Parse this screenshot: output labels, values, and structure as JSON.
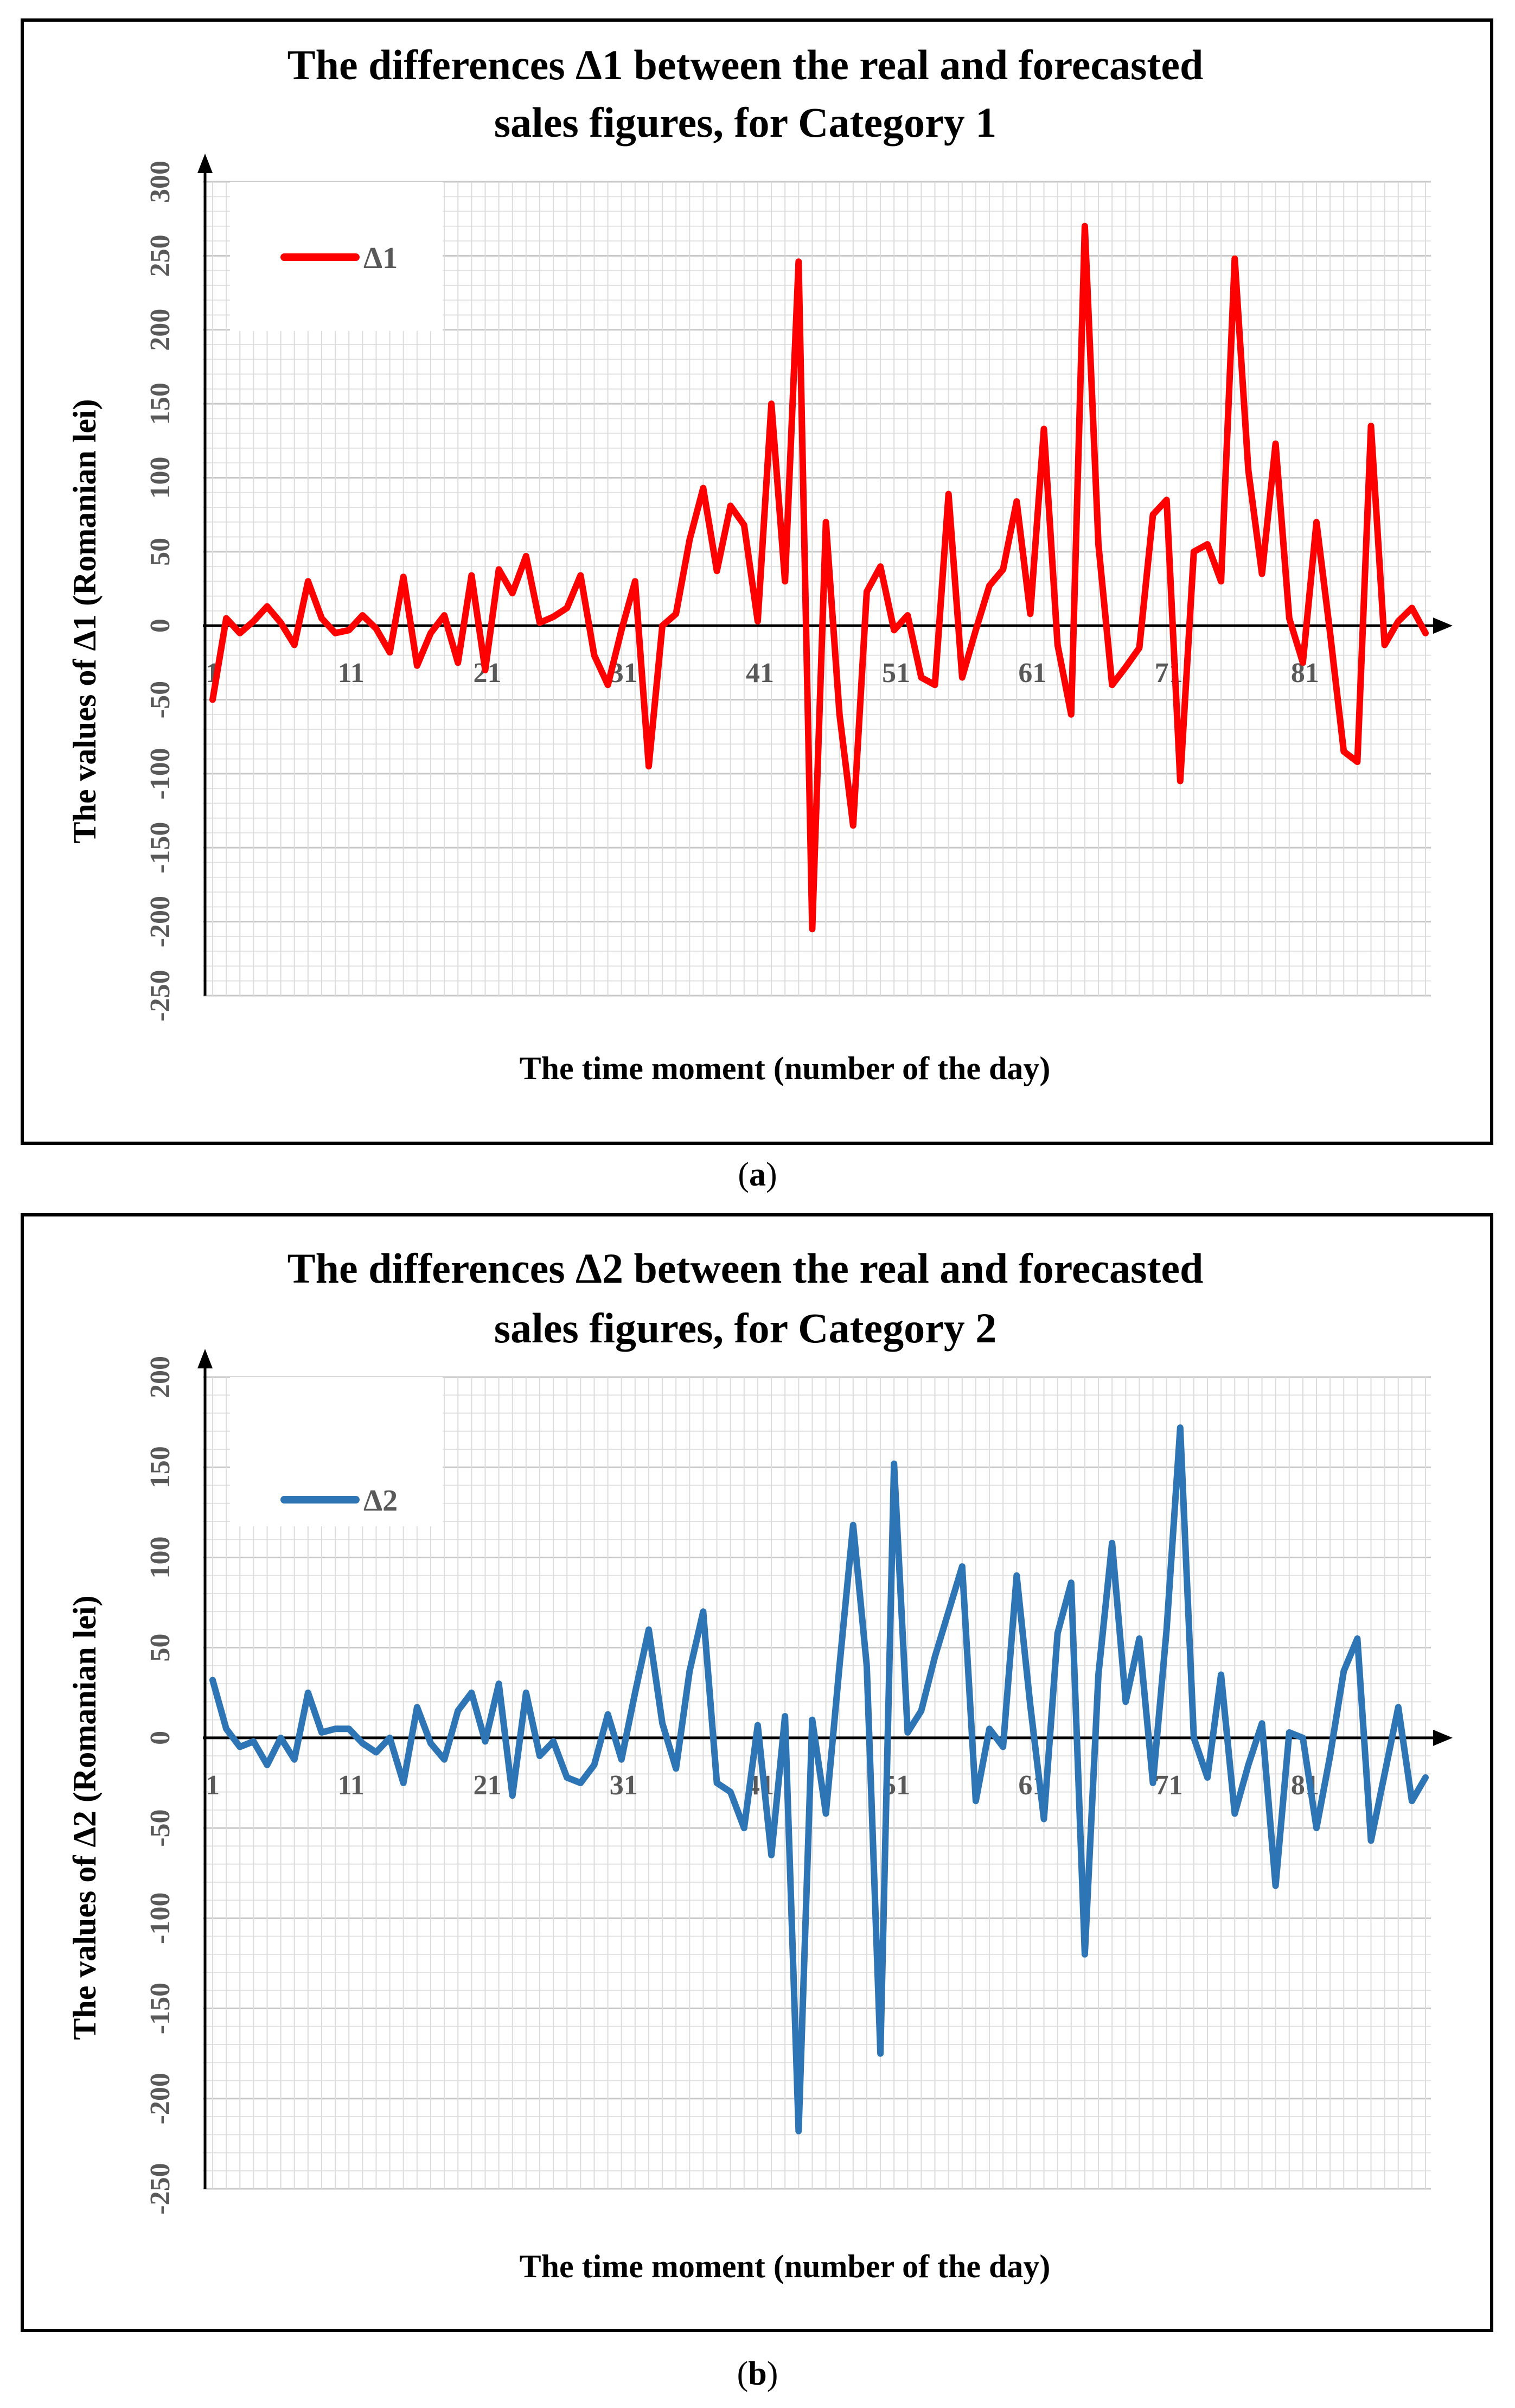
{
  "captions": {
    "a_prefix": "(",
    "a_letter": "a",
    "a_suffix": ")",
    "b_prefix": "(",
    "b_letter": "b",
    "b_suffix": ")"
  },
  "chart_data": [
    {
      "type": "line",
      "title_line1": "The differences Δ1 between the real and forecasted",
      "title_line2": "sales figures, for Category 1",
      "xlabel": "The time moment (number of the day)",
      "ylabel": "The values of Δ1 (Romanian lei)",
      "ylim": [
        -250,
        300
      ],
      "yticks": [
        -250,
        -200,
        -150,
        -100,
        -50,
        0,
        50,
        100,
        150,
        200,
        250,
        300
      ],
      "xlim": [
        1,
        90
      ],
      "xtick_labels": [
        "1",
        "11",
        "21",
        "31",
        "41",
        "51",
        "61",
        "71",
        "81"
      ],
      "xtick_values": [
        1,
        11,
        21,
        31,
        41,
        51,
        61,
        71,
        81
      ],
      "grid": true,
      "legend_position": "top-left",
      "series": [
        {
          "name": "Δ1",
          "color": "#ff0000",
          "x": [
            1,
            2,
            3,
            4,
            5,
            6,
            7,
            8,
            9,
            10,
            11,
            12,
            13,
            14,
            15,
            16,
            17,
            18,
            19,
            20,
            21,
            22,
            23,
            24,
            25,
            26,
            27,
            28,
            29,
            30,
            31,
            32,
            33,
            34,
            35,
            36,
            37,
            38,
            39,
            40,
            41,
            42,
            43,
            44,
            45,
            46,
            47,
            48,
            49,
            50,
            51,
            52,
            53,
            54,
            55,
            56,
            57,
            58,
            59,
            60,
            61,
            62,
            63,
            64,
            65,
            66,
            67,
            68,
            69,
            70,
            71,
            72,
            73,
            74,
            75,
            76,
            77,
            78,
            79,
            80,
            81,
            82,
            83,
            84,
            85,
            86,
            87,
            88,
            89,
            90
          ],
          "values": [
            -50,
            5,
            -5,
            3,
            13,
            2,
            -13,
            30,
            5,
            -5,
            -3,
            7,
            -2,
            -18,
            33,
            -27,
            -5,
            7,
            -25,
            34,
            -30,
            38,
            22,
            47,
            2,
            6,
            12,
            34,
            -20,
            -40,
            -3,
            30,
            -95,
            0,
            8,
            58,
            93,
            37,
            81,
            68,
            3,
            150,
            30,
            246,
            -205,
            70,
            -60,
            -135,
            23,
            40,
            -3,
            7,
            -35,
            -40,
            89,
            -35,
            -3,
            27,
            38,
            84,
            8,
            133,
            -13,
            -60,
            270,
            55,
            -40,
            -28,
            -15,
            75,
            85,
            -105,
            50,
            55,
            30,
            248,
            105,
            35,
            123,
            5,
            -25,
            70,
            -5,
            -85,
            -92,
            135,
            -13,
            3,
            12,
            -5
          ]
        }
      ]
    },
    {
      "type": "line",
      "title_line1": "The differences Δ2 between the real and forecasted",
      "title_line2": "sales figures, for Category 2",
      "xlabel": "The time moment (number of the day)",
      "ylabel": "The values of Δ2 (Romanian lei)",
      "ylim": [
        -250,
        200
      ],
      "yticks": [
        -250,
        -200,
        -150,
        -100,
        -50,
        0,
        50,
        100,
        150,
        200
      ],
      "xlim": [
        1,
        90
      ],
      "xtick_labels": [
        "1",
        "11",
        "21",
        "31",
        "41",
        "51",
        "61",
        "71",
        "81"
      ],
      "xtick_values": [
        1,
        11,
        21,
        31,
        41,
        51,
        61,
        71,
        81
      ],
      "grid": true,
      "legend_position": "top-left",
      "series": [
        {
          "name": "Δ2",
          "color": "#2e75b6",
          "x": [
            1,
            2,
            3,
            4,
            5,
            6,
            7,
            8,
            9,
            10,
            11,
            12,
            13,
            14,
            15,
            16,
            17,
            18,
            19,
            20,
            21,
            22,
            23,
            24,
            25,
            26,
            27,
            28,
            29,
            30,
            31,
            32,
            33,
            34,
            35,
            36,
            37,
            38,
            39,
            40,
            41,
            42,
            43,
            44,
            45,
            46,
            47,
            48,
            49,
            50,
            51,
            52,
            53,
            54,
            55,
            56,
            57,
            58,
            59,
            60,
            61,
            62,
            63,
            64,
            65,
            66,
            67,
            68,
            69,
            70,
            71,
            72,
            73,
            74,
            75,
            76,
            77,
            78,
            79,
            80,
            81,
            82,
            83,
            84,
            85,
            86,
            87,
            88,
            89,
            90
          ],
          "values": [
            32,
            5,
            -5,
            -2,
            -15,
            0,
            -12,
            25,
            3,
            5,
            5,
            -3,
            -8,
            0,
            -25,
            17,
            -3,
            -12,
            15,
            25,
            -2,
            30,
            -32,
            25,
            -10,
            -2,
            -22,
            -25,
            -15,
            13,
            -12,
            25,
            60,
            8,
            -17,
            37,
            70,
            -25,
            -30,
            -50,
            7,
            -65,
            12,
            -218,
            10,
            -42,
            40,
            118,
            40,
            -175,
            152,
            3,
            15,
            45,
            70,
            95,
            -35,
            5,
            -5,
            90,
            18,
            -45,
            58,
            86,
            -120,
            35,
            108,
            20,
            55,
            -25,
            60,
            172,
            0,
            -22,
            35,
            -42,
            -15,
            8,
            -82,
            3,
            0,
            -50,
            -10,
            37,
            55,
            -57,
            -20,
            17,
            -35,
            -22
          ]
        }
      ]
    }
  ]
}
